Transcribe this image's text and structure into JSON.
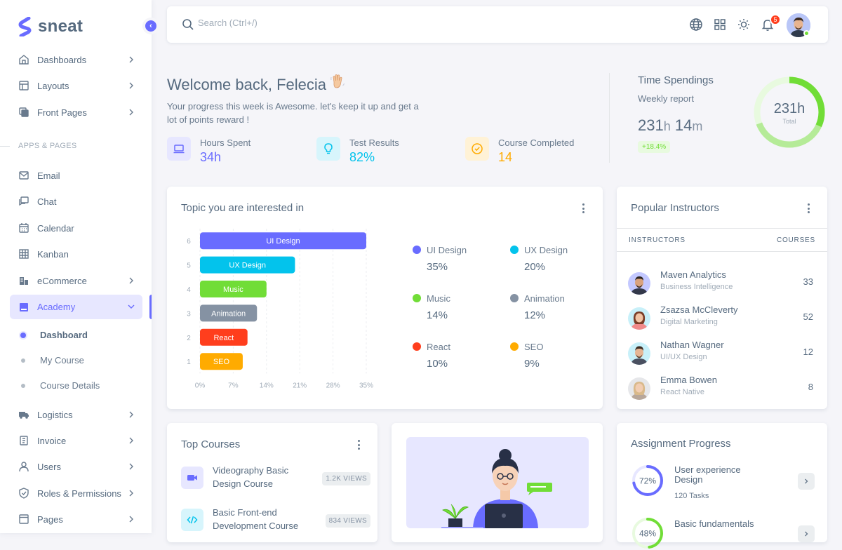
{
  "brand": {
    "name": "sneat"
  },
  "sidebar": {
    "items_top": [
      {
        "label": "Dashboards",
        "icon": "home-icon"
      },
      {
        "label": "Layouts",
        "icon": "layout-icon"
      },
      {
        "label": "Front Pages",
        "icon": "copy-icon"
      }
    ],
    "section_label": "APPS & PAGES",
    "items_apps": [
      {
        "label": "Email",
        "icon": "mail-icon"
      },
      {
        "label": "Chat",
        "icon": "chat-icon"
      },
      {
        "label": "Calendar",
        "icon": "calendar-icon"
      },
      {
        "label": "Kanban",
        "icon": "grid-icon"
      },
      {
        "label": "eCommerce",
        "icon": "store-icon"
      },
      {
        "label": "Academy",
        "icon": "book-icon"
      }
    ],
    "academy_sub": [
      {
        "label": "Dashboard"
      },
      {
        "label": "My Course"
      },
      {
        "label": "Course Details"
      }
    ],
    "items_bottom": [
      {
        "label": "Logistics",
        "icon": "truck-icon"
      },
      {
        "label": "Invoice",
        "icon": "file-icon"
      },
      {
        "label": "Users",
        "icon": "user-icon"
      },
      {
        "label": "Roles & Permissions",
        "icon": "shield-icon"
      },
      {
        "label": "Pages",
        "icon": "window-icon"
      }
    ]
  },
  "navbar": {
    "search_placeholder": "Search (Ctrl+/)",
    "notification_count": "5"
  },
  "welcome": {
    "title": "Welcome back, Felecia",
    "subtitle": "Your progress this week is Awesome. let's keep it up and get a lot of points reward !",
    "stats": [
      {
        "label": "Hours Spent",
        "value": "34h",
        "color": "#696cff"
      },
      {
        "label": "Test Results",
        "value": "82%",
        "color": "#03c3ec"
      },
      {
        "label": "Course Completed",
        "value": "14",
        "color": "#ffab00"
      }
    ]
  },
  "time_spendings": {
    "title": "Time Spendings",
    "subtitle": "Weekly report",
    "hours": "231",
    "hours_unit": "h",
    "minutes": "14",
    "minutes_unit": "m",
    "change": "+18.4%",
    "donut_value": "231h",
    "donut_label": "Total"
  },
  "topics": {
    "title": "Topic you are interested in",
    "legend": [
      {
        "name": "UI Design",
        "value": "35%",
        "color": "#696cff"
      },
      {
        "name": "UX Design",
        "value": "20%",
        "color": "#03c3ec"
      },
      {
        "name": "Music",
        "value": "14%",
        "color": "#71dd37"
      },
      {
        "name": "Animation",
        "value": "12%",
        "color": "#8592a3"
      },
      {
        "name": "React",
        "value": "10%",
        "color": "#ff3e1d"
      },
      {
        "name": "SEO",
        "value": "9%",
        "color": "#ffab00"
      }
    ]
  },
  "chart_data": {
    "type": "bar",
    "orientation": "horizontal",
    "categories": [
      "UI Design",
      "UX Design",
      "Music",
      "Animation",
      "React",
      "SEO"
    ],
    "category_ticks": [
      "6",
      "5",
      "4",
      "3",
      "2",
      "1"
    ],
    "values": [
      35,
      20,
      14,
      12,
      10,
      9
    ],
    "colors": [
      "#696cff",
      "#03c3ec",
      "#71dd37",
      "#8592a3",
      "#ff3e1d",
      "#ffab00"
    ],
    "x_ticks": [
      "0%",
      "7%",
      "14%",
      "21%",
      "28%",
      "35%"
    ],
    "xlim": [
      0,
      35
    ],
    "grid": true
  },
  "instructors": {
    "title": "Popular Instructors",
    "col_name": "INSTRUCTORS",
    "col_count": "COURSES",
    "rows": [
      {
        "name": "Maven Analytics",
        "role": "Business Intelligence",
        "courses": "33"
      },
      {
        "name": "Zsazsa McCleverty",
        "role": "Digital Marketing",
        "courses": "52"
      },
      {
        "name": "Nathan Wagner",
        "role": "UI/UX Design",
        "courses": "12"
      },
      {
        "name": "Emma Bowen",
        "role": "React Native",
        "courses": "8"
      }
    ]
  },
  "top_courses": {
    "title": "Top Courses",
    "items": [
      {
        "name": "Videography Basic Design Course",
        "views": "1.2K VIEWS",
        "icon": "video-icon"
      },
      {
        "name": "Basic Front-end Development Course",
        "views": "834 VIEWS",
        "icon": "code-icon"
      }
    ]
  },
  "assignment": {
    "title": "Assignment Progress",
    "items": [
      {
        "name": "User experience Design",
        "tasks": "120 Tasks",
        "percent": "72%",
        "progress": 0.72,
        "color": "#696cff"
      },
      {
        "name": "Basic fundamentals",
        "tasks": "",
        "percent": "48%",
        "progress": 0.48,
        "color": "#71dd37"
      }
    ]
  }
}
